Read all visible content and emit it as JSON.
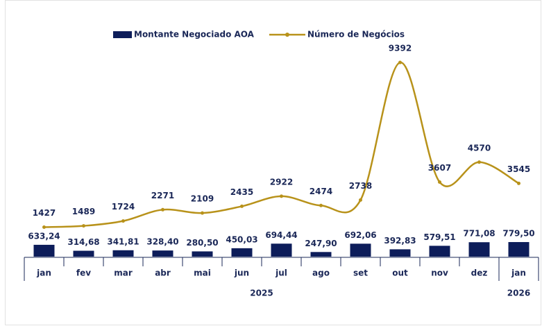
{
  "chart_data": {
    "type": "combo",
    "categories": [
      "jan",
      "fev",
      "mar",
      "abr",
      "mai",
      "jun",
      "jul",
      "ago",
      "set",
      "out",
      "nov",
      "dez",
      "jan"
    ],
    "years": [
      "2025",
      "2025",
      "2025",
      "2025",
      "2025",
      "2025",
      "2025",
      "2025",
      "2025",
      "2025",
      "2025",
      "2025",
      "2026"
    ],
    "series": [
      {
        "name": "Montante Negociado AOA",
        "type": "bar",
        "color": "#0d1d5a",
        "values": [
          633.24,
          314.68,
          341.81,
          328.4,
          280.5,
          450.03,
          694.44,
          247.9,
          692.06,
          392.83,
          579.51,
          771.08,
          779.5
        ],
        "value_labels": [
          "633,24",
          "314,68",
          "341,81",
          "328,40",
          "280,50",
          "450,03",
          "694,44",
          "247,90",
          "692,06",
          "392,83",
          "579,51",
          "771,08",
          "779,50"
        ]
      },
      {
        "name": "Número de Negócios",
        "type": "line",
        "axis": "y2",
        "color": "#b8921a",
        "values": [
          1427,
          1489,
          1724,
          2271,
          2109,
          2435,
          2922,
          2474,
          2738,
          9392,
          3607,
          4570,
          3545
        ]
      }
    ],
    "ylim": [
      0,
      11500
    ],
    "y2lim": [
      0,
      10400
    ]
  }
}
